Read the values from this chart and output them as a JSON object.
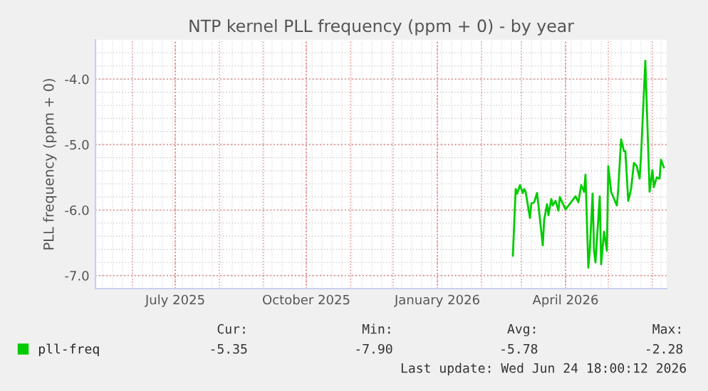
{
  "chart_data": {
    "type": "line",
    "title": "NTP kernel PLL frequency (ppm + 0) - by year",
    "ylabel": "PLL frequency (ppm + 0)",
    "x": [
      "2026-02-23",
      "2026-02-25",
      "2026-02-26",
      "2026-02-28",
      "2026-03-02",
      "2026-03-03",
      "2026-03-04",
      "2026-03-07",
      "2026-03-08",
      "2026-03-10",
      "2026-03-12",
      "2026-03-13",
      "2026-03-16",
      "2026-03-17",
      "2026-03-19",
      "2026-03-20",
      "2026-03-22",
      "2026-03-23",
      "2026-03-25",
      "2026-03-27",
      "2026-03-28",
      "2026-04-01",
      "2026-04-05",
      "2026-04-08",
      "2026-04-10",
      "2026-04-12",
      "2026-04-14",
      "2026-04-15",
      "2026-04-17",
      "2026-04-18",
      "2026-04-20",
      "2026-04-21",
      "2026-04-22",
      "2026-04-25",
      "2026-04-26",
      "2026-04-28",
      "2026-04-30",
      "2026-05-01",
      "2026-05-03",
      "2026-05-05",
      "2026-05-07",
      "2026-05-08",
      "2026-05-10",
      "2026-05-12",
      "2026-05-13",
      "2026-05-15",
      "2026-05-17",
      "2026-05-19",
      "2026-05-21",
      "2026-05-23",
      "2026-05-24",
      "2026-05-27",
      "2026-05-30",
      "2026-06-01",
      "2026-06-02",
      "2026-06-04",
      "2026-06-06",
      "2026-06-07",
      "2026-06-09"
    ],
    "series": [
      {
        "name": "pll-freq",
        "color": "#00cc00",
        "values": [
          -6.7,
          -5.68,
          -5.75,
          -5.62,
          -5.74,
          -5.68,
          -5.72,
          -6.12,
          -5.9,
          -5.88,
          -5.74,
          -5.93,
          -6.54,
          -6.15,
          -5.91,
          -6.08,
          -5.83,
          -5.93,
          -5.86,
          -6.01,
          -5.8,
          -5.99,
          null,
          -5.79,
          -5.88,
          -5.62,
          -5.72,
          -5.46,
          -6.88,
          -6.62,
          -5.75,
          -6.62,
          -6.8,
          -5.79,
          -6.83,
          -6.33,
          -6.62,
          -5.33,
          -5.72,
          null,
          -5.93,
          -5.68,
          -4.92,
          -5.1,
          -5.1,
          -5.86,
          -5.68,
          -5.28,
          -5.33,
          -5.52,
          -5.17,
          -3.72,
          -5.72,
          -5.39,
          -5.65,
          -5.5,
          -5.52,
          -5.23,
          -5.35
        ]
      }
    ],
    "xlim": [
      "2025-05-06",
      "2026-06-11"
    ],
    "xticks": [
      {
        "value": "2025-07-01",
        "label": "July 2025"
      },
      {
        "value": "2025-10-01",
        "label": "October 2025"
      },
      {
        "value": "2026-01-01",
        "label": "January 2026"
      },
      {
        "value": "2026-04-01",
        "label": "April 2026"
      }
    ],
    "ylim": [
      -7.2,
      -3.4
    ],
    "yticks": [
      {
        "value": -7,
        "label": "-7.0"
      },
      {
        "value": -6,
        "label": "-6.0"
      },
      {
        "value": -5,
        "label": "-5.0"
      },
      {
        "value": -4,
        "label": "-4.0"
      }
    ],
    "grid": true,
    "legend": "bottom left",
    "annotations": [
      "Cur:",
      "Min:",
      "Avg:",
      "Max:",
      "-5.35",
      "-7.90",
      "-5.78",
      "-2.28",
      "Last update: Wed Jun 24 18:00:12 2026"
    ]
  }
}
